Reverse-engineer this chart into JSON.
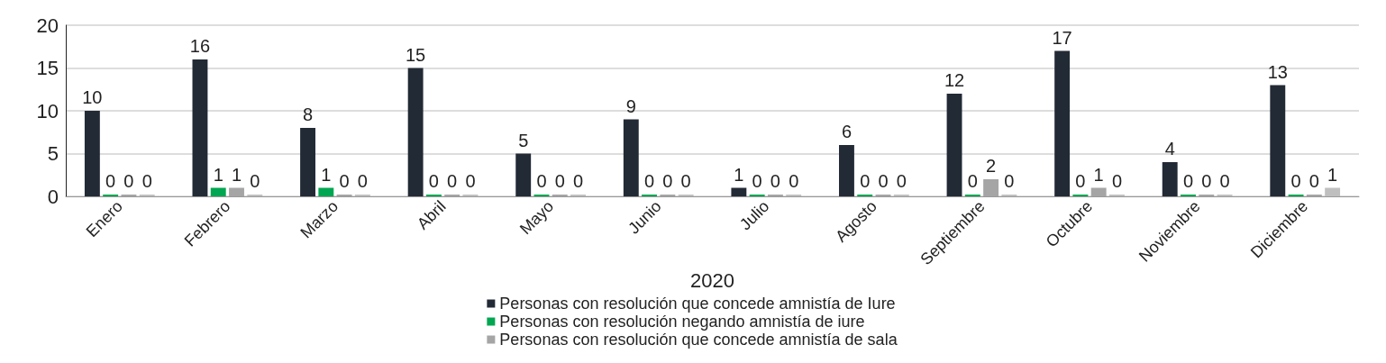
{
  "chart_data": {
    "type": "bar",
    "xlabel": "2020",
    "categories": [
      "Enero",
      "Febrero",
      "Marzo",
      "Abril",
      "Mayo",
      "Junio",
      "Julio",
      "Agosto",
      "Septiembre",
      "Octubre",
      "Noviembre",
      "Diciembre"
    ],
    "series": [
      {
        "name": "Personas con resolución que concede amnistía de Iure",
        "color": "#222a35",
        "values": [
          10,
          16,
          8,
          15,
          5,
          9,
          1,
          6,
          12,
          17,
          4,
          13
        ]
      },
      {
        "name": "Personas con resolución negando amnistía de iure",
        "color": "#00a651",
        "values": [
          0,
          1,
          1,
          0,
          0,
          0,
          0,
          0,
          0,
          0,
          0,
          0
        ]
      },
      {
        "name": "Personas con resolución que concede amnistía de sala",
        "color": "#a5a5a5",
        "values": [
          0,
          1,
          0,
          0,
          0,
          0,
          0,
          0,
          2,
          1,
          0,
          0
        ]
      },
      {
        "color": "#bfbfbf",
        "values": [
          0,
          0,
          0,
          0,
          0,
          0,
          0,
          0,
          0,
          0,
          0,
          1
        ]
      }
    ],
    "ylim": [
      0,
      20
    ],
    "yticks": [
      0,
      5,
      10,
      15,
      20
    ],
    "grid": "y",
    "legend": "bottom",
    "data_labels": true
  }
}
